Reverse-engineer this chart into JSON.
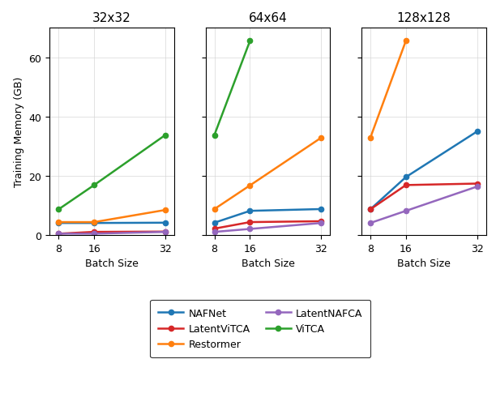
{
  "batch_sizes": [
    8,
    16,
    32
  ],
  "subplots": [
    {
      "title": "32x32",
      "series": {
        "NAFNet": [
          4.1,
          4.1,
          4.2
        ],
        "Restormer": [
          4.4,
          4.4,
          8.5
        ],
        "ViTCA": [
          8.7,
          16.9,
          33.8
        ],
        "LatentViTCA": [
          0.5,
          1.1,
          1.2
        ],
        "LatentNAFCA": [
          0.5,
          0.5,
          1.1
        ]
      }
    },
    {
      "title": "64x64",
      "series": {
        "NAFNet": [
          4.2,
          8.2,
          8.8
        ],
        "Restormer": [
          8.8,
          16.8,
          32.9
        ],
        "ViTCA": [
          33.8,
          65.6,
          null
        ],
        "LatentViTCA": [
          2.2,
          4.4,
          4.7
        ],
        "LatentNAFCA": [
          1.1,
          2.1,
          4.1
        ]
      }
    },
    {
      "title": "128x128",
      "series": {
        "NAFNet": [
          8.7,
          19.6,
          35.0
        ],
        "Restormer": [
          32.8,
          65.6,
          null
        ],
        "ViTCA": [
          null,
          null,
          null
        ],
        "LatentViTCA": [
          8.7,
          16.9,
          17.4
        ],
        "LatentNAFCA": [
          4.1,
          8.2,
          16.4
        ]
      }
    }
  ],
  "colors": {
    "NAFNet": "#1f77b4",
    "Restormer": "#ff7f0e",
    "ViTCA": "#2ca02c",
    "LatentViTCA": "#d62728",
    "LatentNAFCA": "#9467bd"
  },
  "ylabel": "Training Memory (GB)",
  "xlabel": "Batch Size",
  "ylim": [
    0,
    70
  ],
  "yticks": [
    0,
    20,
    40,
    60
  ],
  "legend_ordered": [
    "NAFNet",
    "LatentViTCA",
    "Restormer",
    "LatentNAFCA",
    "ViTCA"
  ]
}
